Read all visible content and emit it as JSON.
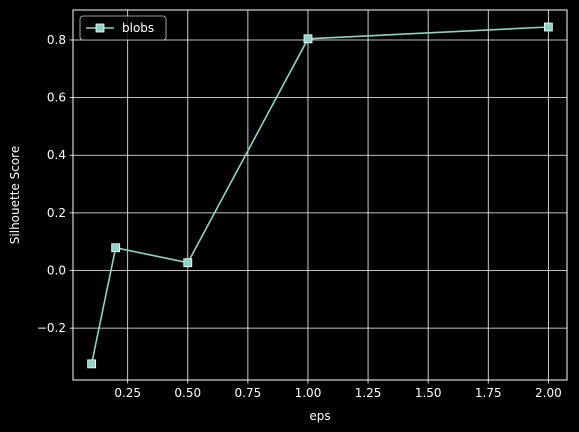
{
  "chart_data": {
    "type": "line",
    "title": "",
    "xlabel": "eps",
    "ylabel": "Silhouette Score",
    "xlim": [
      0.0225,
      2.0775
    ],
    "ylim": [
      -0.38,
      0.904
    ],
    "x_ticks": [
      0.25,
      0.5,
      0.75,
      1.0,
      1.25,
      1.5,
      1.75,
      2.0
    ],
    "x_tick_labels": [
      "0.25",
      "0.50",
      "0.75",
      "1.00",
      "1.25",
      "1.50",
      "1.75",
      "2.00"
    ],
    "y_ticks": [
      -0.2,
      0.0,
      0.2,
      0.4,
      0.6,
      0.8
    ],
    "y_tick_labels": [
      "−0.2",
      "0.0",
      "0.2",
      "0.4",
      "0.6",
      "0.8"
    ],
    "grid": true,
    "legend_position": "top-left",
    "series": [
      {
        "name": "blobs",
        "marker": "square",
        "color": "#8dd3c7",
        "x": [
          0.1,
          0.2,
          0.5,
          1.0,
          2.0
        ],
        "y": [
          -0.324,
          0.079,
          0.027,
          0.804,
          0.845
        ]
      }
    ]
  },
  "colors": {
    "background": "#000000",
    "axes": "#ffffff",
    "grid": "#ffffff"
  }
}
